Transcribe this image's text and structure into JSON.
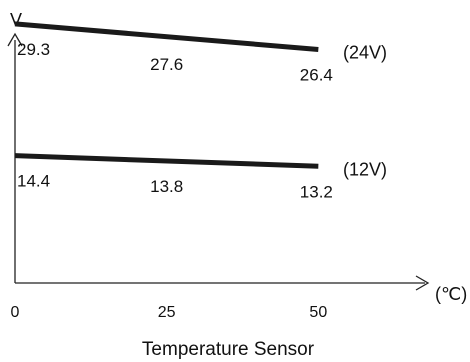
{
  "chart_data": {
    "type": "line",
    "title": "",
    "xlabel": "Temperature Sensor",
    "ylabel": "V",
    "x_unit": "(℃)",
    "x": [
      0,
      25,
      50
    ],
    "x_ticks": [
      "0",
      "25",
      "50"
    ],
    "xlim": [
      0,
      75
    ],
    "ylim": [
      0,
      32
    ],
    "grid": false,
    "series": [
      {
        "name": "(24V)",
        "values": [
          29.3,
          27.6,
          26.4
        ],
        "labels": [
          "29.3",
          "27.6",
          "26.4"
        ]
      },
      {
        "name": "(12V)",
        "values": [
          14.4,
          13.8,
          13.2
        ],
        "labels": [
          "14.4",
          "13.8",
          "13.2"
        ]
      }
    ]
  },
  "colors": {
    "line": "#1a1a1a",
    "axis": "#222222",
    "text": "#111111"
  }
}
